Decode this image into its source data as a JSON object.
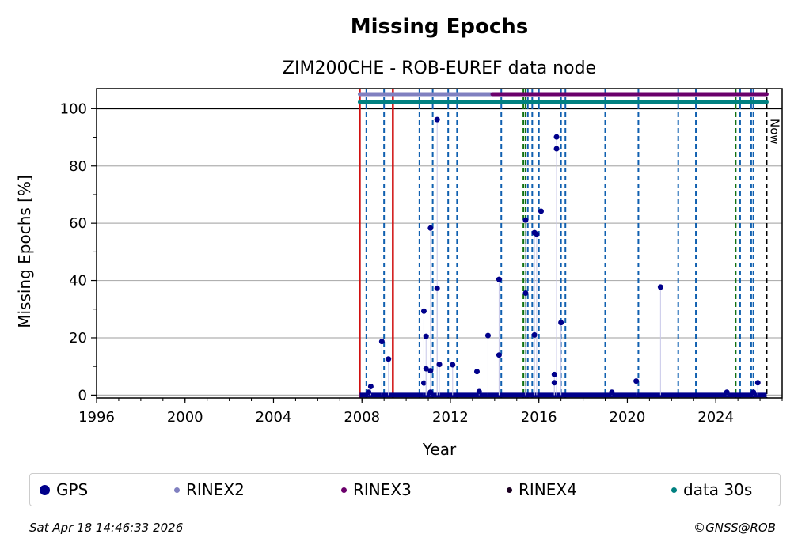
{
  "chart_data": {
    "type": "scatter",
    "title": "Missing Epochs",
    "subtitle": "ZIM200CHE - ROB-EUREF data node",
    "xlabel": "Year",
    "ylabel": "Missing Epochs [%]",
    "xlim": [
      1996,
      2027.0
    ],
    "ylim": [
      -1,
      107
    ],
    "x_ticks": [
      "1996",
      "2000",
      "2004",
      "2008",
      "2012",
      "2016",
      "2020",
      "2024"
    ],
    "y_ticks": [
      "0",
      "20",
      "40",
      "60",
      "80",
      "100"
    ],
    "grid": true,
    "legend_placement": "bottom",
    "now_label": "Now",
    "now_year": 2026.3,
    "series": [
      {
        "name": "GPS",
        "color": "#00008b",
        "points": [
          [
            2008.4,
            3.0
          ],
          [
            2008.9,
            18.7
          ],
          [
            2009.2,
            12.6
          ],
          [
            2010.8,
            29.3
          ],
          [
            2010.8,
            4.2
          ],
          [
            2010.9,
            20.5
          ],
          [
            2010.9,
            9.2
          ],
          [
            2011.1,
            58.3
          ],
          [
            2011.1,
            8.5
          ],
          [
            2011.4,
            96.2
          ],
          [
            2011.4,
            37.3
          ],
          [
            2011.5,
            10.7
          ],
          [
            2012.1,
            10.6
          ],
          [
            2013.2,
            8.2
          ],
          [
            2013.7,
            20.8
          ],
          [
            2014.2,
            40.4
          ],
          [
            2014.2,
            14.0
          ],
          [
            2015.4,
            61.1
          ],
          [
            2015.4,
            35.6
          ],
          [
            2015.8,
            56.7
          ],
          [
            2015.9,
            56.2
          ],
          [
            2015.8,
            21.0
          ],
          [
            2016.1,
            64.2
          ],
          [
            2016.8,
            90.1
          ],
          [
            2016.8,
            86.0
          ],
          [
            2016.7,
            7.2
          ],
          [
            2016.7,
            4.3
          ],
          [
            2017.0,
            25.3
          ],
          [
            2020.4,
            4.9
          ],
          [
            2021.5,
            37.7
          ],
          [
            2025.9,
            4.3
          ],
          [
            2008.3,
            1.0
          ],
          [
            2011.1,
            1.0
          ],
          [
            2013.3,
            1.2
          ],
          [
            2019.3,
            1.0
          ],
          [
            2024.5,
            1.0
          ],
          [
            2025.7,
            1.0
          ]
        ]
      },
      {
        "name": "RINEX2",
        "color": "#8080c0",
        "start": 2007.9,
        "end": 2014.0
      },
      {
        "name": "RINEX3",
        "color": "#6b006b",
        "start": 2013.9,
        "end": 2026.3
      },
      {
        "name": "RINEX4",
        "color": "#1a0020"
      },
      {
        "name": "data 30s",
        "color": "#008080",
        "start": 2007.9,
        "end": 2026.3
      }
    ],
    "event_lines": {
      "blue": [
        2008.2,
        2009.0,
        2010.6,
        2011.2,
        2011.9,
        2012.3,
        2014.3,
        2015.5,
        2015.7,
        2016.0,
        2017.0,
        2017.2,
        2019.0,
        2020.5,
        2022.3,
        2023.1,
        2025.1,
        2025.6,
        2025.7
      ],
      "green": [
        2007.9,
        2015.3,
        2015.4,
        2024.9
      ],
      "red": [
        2007.9,
        2009.4
      ]
    },
    "reference_line_y": 100
  },
  "legend": [
    {
      "label": "GPS",
      "color": "#00008b",
      "size": "large"
    },
    {
      "label": "RINEX2",
      "color": "#8080c0",
      "size": "small"
    },
    {
      "label": "RINEX3",
      "color": "#6b006b",
      "size": "small"
    },
    {
      "label": "RINEX4",
      "color": "#1a0020",
      "size": "small"
    },
    {
      "label": "data 30s",
      "color": "#008080",
      "size": "small"
    }
  ],
  "footer": {
    "timestamp": "Sat Apr 18 14:46:33 2026",
    "copyright": "©GNSS@ROB"
  }
}
